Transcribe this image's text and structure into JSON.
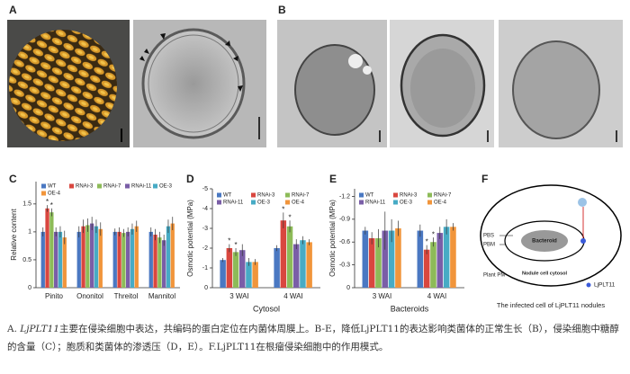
{
  "panel_labels": [
    "A",
    "B",
    "C",
    "D",
    "E",
    "F"
  ],
  "chart_data": [
    {
      "type": "bar",
      "ylabel": "Relative content",
      "categories": [
        "Pinito",
        "Ononitol",
        "Threitol",
        "Mannitol"
      ],
      "ylim": [
        0,
        1.9
      ],
      "yticks": [
        0,
        0.5,
        1,
        1.5
      ],
      "legend": "upper left",
      "series": [
        {
          "name": "WT",
          "color": "#4a78c2",
          "values": [
            1.0,
            1.0,
            1.0,
            1.0
          ],
          "errors": [
            0.08,
            0.1,
            0.06,
            0.08
          ],
          "labels": [
            null,
            null,
            null,
            null
          ]
        },
        {
          "name": "RNAi-3",
          "color": "#d9473f",
          "values": [
            1.42,
            1.1,
            1.0,
            0.95
          ],
          "errors": [
            0.06,
            0.12,
            0.08,
            0.1
          ],
          "labels": [
            "*",
            null,
            null,
            null
          ]
        },
        {
          "name": "RNAi-7",
          "color": "#8dbb58",
          "values": [
            1.35,
            1.12,
            0.98,
            0.9
          ],
          "errors": [
            0.07,
            0.12,
            0.07,
            0.1
          ],
          "labels": [
            "*",
            null,
            null,
            null
          ]
        },
        {
          "name": "RNAi-11",
          "color": "#7a5ea7",
          "values": [
            1.0,
            1.15,
            1.0,
            0.85
          ],
          "errors": [
            0.08,
            0.12,
            0.08,
            0.1
          ],
          "labels": [
            null,
            null,
            null,
            null
          ]
        },
        {
          "name": "OE-3",
          "color": "#47abc5",
          "values": [
            1.0,
            1.1,
            1.05,
            1.1
          ],
          "errors": [
            0.1,
            0.12,
            0.1,
            0.12
          ],
          "labels": [
            null,
            null,
            null,
            null
          ]
        },
        {
          "name": "OE-4",
          "color": "#f1953b",
          "values": [
            0.9,
            1.05,
            1.1,
            1.15
          ],
          "errors": [
            0.12,
            0.12,
            0.1,
            0.12
          ],
          "labels": [
            null,
            null,
            null,
            null
          ]
        }
      ]
    },
    {
      "type": "bar",
      "ylabel": "Osmotic potential (MPa)",
      "xlabel": "Cytosol",
      "categories": [
        "3 WAI",
        "4 WAI"
      ],
      "ylim": [
        0,
        -5
      ],
      "yticks": [
        0,
        -1,
        -2,
        -3,
        -4,
        -5
      ],
      "legend": "upper left",
      "series": [
        {
          "name": "WT",
          "color": "#4a78c2",
          "values": [
            -1.4,
            -2.0
          ],
          "errors": [
            0.1,
            0.15
          ],
          "labels": [
            null,
            null
          ]
        },
        {
          "name": "RNAi-3",
          "color": "#d9473f",
          "values": [
            -2.0,
            -3.4
          ],
          "errors": [
            0.2,
            0.4
          ],
          "labels": [
            "*",
            "*"
          ]
        },
        {
          "name": "RNAi-7",
          "color": "#8dbb58",
          "values": [
            -1.8,
            -3.1
          ],
          "errors": [
            0.2,
            0.3
          ],
          "labels": [
            "*",
            "*"
          ]
        },
        {
          "name": "RNAi-11",
          "color": "#7a5ea7",
          "values": [
            -1.9,
            -2.2
          ],
          "errors": [
            0.3,
            0.25
          ],
          "labels": [
            null,
            null
          ]
        },
        {
          "name": "OE-3",
          "color": "#47abc5",
          "values": [
            -1.3,
            -2.4
          ],
          "errors": [
            0.2,
            0.2
          ],
          "labels": [
            null,
            null
          ]
        },
        {
          "name": "OE-4",
          "color": "#f1953b",
          "values": [
            -1.3,
            -2.3
          ],
          "errors": [
            0.15,
            0.15
          ],
          "labels": [
            null,
            null
          ]
        }
      ]
    },
    {
      "type": "bar",
      "ylabel": "Osmotic potential (MPa)",
      "xlabel": "Bacteroids",
      "categories": [
        "3 WAI",
        "4 WAI"
      ],
      "ylim": [
        0,
        -1.3
      ],
      "yticks": [
        0,
        -0.3,
        -0.6,
        -0.9,
        -1.2
      ],
      "legend": "upper left",
      "series": [
        {
          "name": "WT",
          "color": "#4a78c2",
          "values": [
            -0.75,
            -0.75
          ],
          "errors": [
            0.05,
            0.08
          ],
          "labels": [
            null,
            null
          ]
        },
        {
          "name": "RNAi-3",
          "color": "#d9473f",
          "values": [
            -0.65,
            -0.5
          ],
          "errors": [
            0.08,
            0.06
          ],
          "labels": [
            null,
            "*"
          ]
        },
        {
          "name": "RNAi-7",
          "color": "#8dbb58",
          "values": [
            -0.65,
            -0.6
          ],
          "errors": [
            0.12,
            0.06
          ],
          "labels": [
            null,
            "*"
          ]
        },
        {
          "name": "RNAi-11",
          "color": "#7a5ea7",
          "values": [
            -0.75,
            -0.72
          ],
          "errors": [
            0.25,
            0.08
          ],
          "labels": [
            null,
            null
          ]
        },
        {
          "name": "OE-3",
          "color": "#47abc5",
          "values": [
            -0.75,
            -0.8
          ],
          "errors": [
            0.15,
            0.1
          ],
          "labels": [
            null,
            null
          ]
        },
        {
          "name": "OE-4",
          "color": "#f1953b",
          "values": [
            -0.78,
            -0.8
          ],
          "errors": [
            0.1,
            0.05
          ],
          "labels": [
            null,
            null
          ]
        }
      ]
    }
  ],
  "diagram": {
    "pbs": "PBS",
    "pbm": "PBM",
    "plant_pm": "Plant PM",
    "bacteroid": "Bacteroid",
    "cytosol": "Nodule cell cytosol",
    "legend": "LjPLT11",
    "caption": "The infected cell of LjPLT11 nodules"
  },
  "caption": {
    "line1": [
      "A. ",
      "LjPLT11",
      "主要在侵染细胞中表达，共编码的蛋白定位在内菌体周膜上。B-E，降低LjPLT11的表达影响类菌体的正常生长（B），侵染细胞中糖醇"
    ],
    "line2": "的含量（C）；胞质和类菌体的渗透压（D，E）。F.LjPLT11在根瘤侵染细胞中的作用模式。"
  }
}
